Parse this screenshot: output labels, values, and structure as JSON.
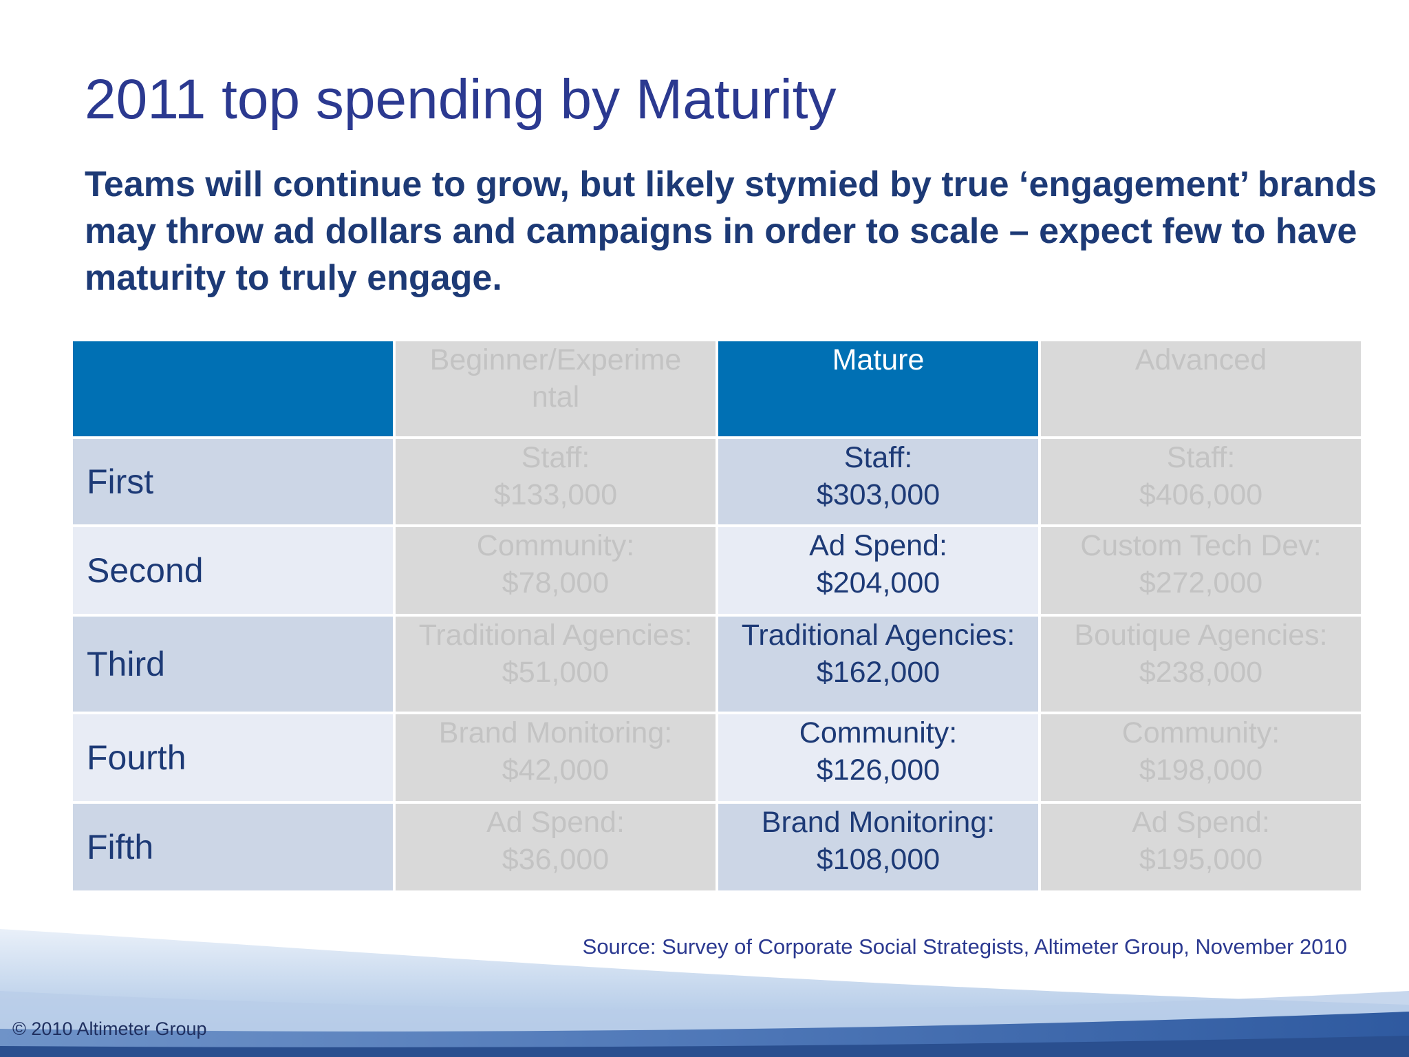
{
  "slide": {
    "title": "2011 top spending by Maturity",
    "subtitle": "Teams will continue to grow, but likely stymied by true ‘engagement’ brands may throw ad dollars and campaigns in order to scale – expect few to have maturity to truly engage."
  },
  "table": {
    "headers": [
      "",
      "Beginner/Experime ntal",
      "Mature",
      "Advanced"
    ],
    "header_beginner_lines": [
      "Beginner/Experime",
      "ntal"
    ],
    "rows": [
      {
        "label": "First",
        "beginner": {
          "item": "Staff:",
          "amount": "$133,000"
        },
        "mature": {
          "item": "Staff:",
          "amount": "$303,000"
        },
        "advanced": {
          "item": "Staff:",
          "amount": "$406,000"
        }
      },
      {
        "label": "Second",
        "beginner": {
          "item": "Community:",
          "amount": "$78,000"
        },
        "mature": {
          "item": "Ad Spend:",
          "amount": "$204,000"
        },
        "advanced": {
          "item": "Custom Tech Dev:",
          "amount": "$272,000"
        }
      },
      {
        "label": "Third",
        "beginner": {
          "item": "Traditional Agencies:",
          "amount": "$51,000"
        },
        "mature": {
          "item": "Traditional Agencies:",
          "amount": "$162,000"
        },
        "advanced": {
          "item": "Boutique Agencies:",
          "amount": "$238,000"
        }
      },
      {
        "label": "Fourth",
        "beginner": {
          "item": "Brand Monitoring:",
          "amount": "$42,000"
        },
        "mature": {
          "item": "Community:",
          "amount": "$126,000"
        },
        "advanced": {
          "item": "Community:",
          "amount": "$198,000"
        }
      },
      {
        "label": "Fifth",
        "beginner": {
          "item": "Ad Spend:",
          "amount": "$36,000"
        },
        "mature": {
          "item": "Brand Monitoring:",
          "amount": "$108,000"
        },
        "advanced": {
          "item": "Ad Spend:",
          "amount": "$195,000"
        }
      }
    ]
  },
  "footer": {
    "source": "Source: Survey of Corporate Social Strategists, Altimeter Group, November 2010",
    "copyright": "© 2010 Altimeter Group"
  },
  "colors": {
    "header_blue": "#0070b4",
    "title_blue": "#2b3990",
    "text_navy": "#1d3a76",
    "gray_cell": "#d9d9d9",
    "gray_text": "#c3c3c3",
    "row_dark": "#ccd6e6",
    "row_light": "#e8ecf5"
  }
}
